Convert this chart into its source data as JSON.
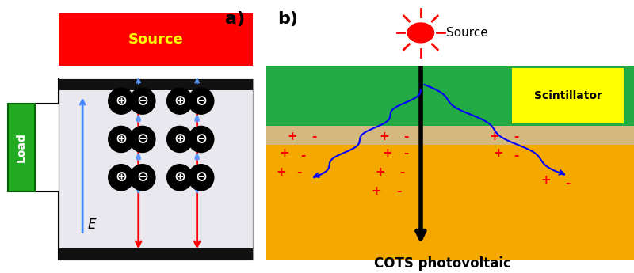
{
  "fig_width": 8.0,
  "fig_height": 3.45,
  "bg_color": "#ffffff",
  "panel_a": {
    "label": "a)",
    "source_color": "#ff0000",
    "source_text": "Source",
    "source_text_color": "#ffff00",
    "chamber_fill": "#e8e8ee",
    "electrode_color": "#111111",
    "load_color": "#22aa22",
    "load_text": "Load",
    "e_label": "E"
  },
  "panel_b": {
    "label": "b)",
    "source_text": "Source",
    "scint_color": "#22aa44",
    "scint_label": "Scintillator",
    "pv_color": "#f5a800",
    "pv_inner_color": "#d4b880",
    "pv_label": "COTS photovoltaic"
  }
}
